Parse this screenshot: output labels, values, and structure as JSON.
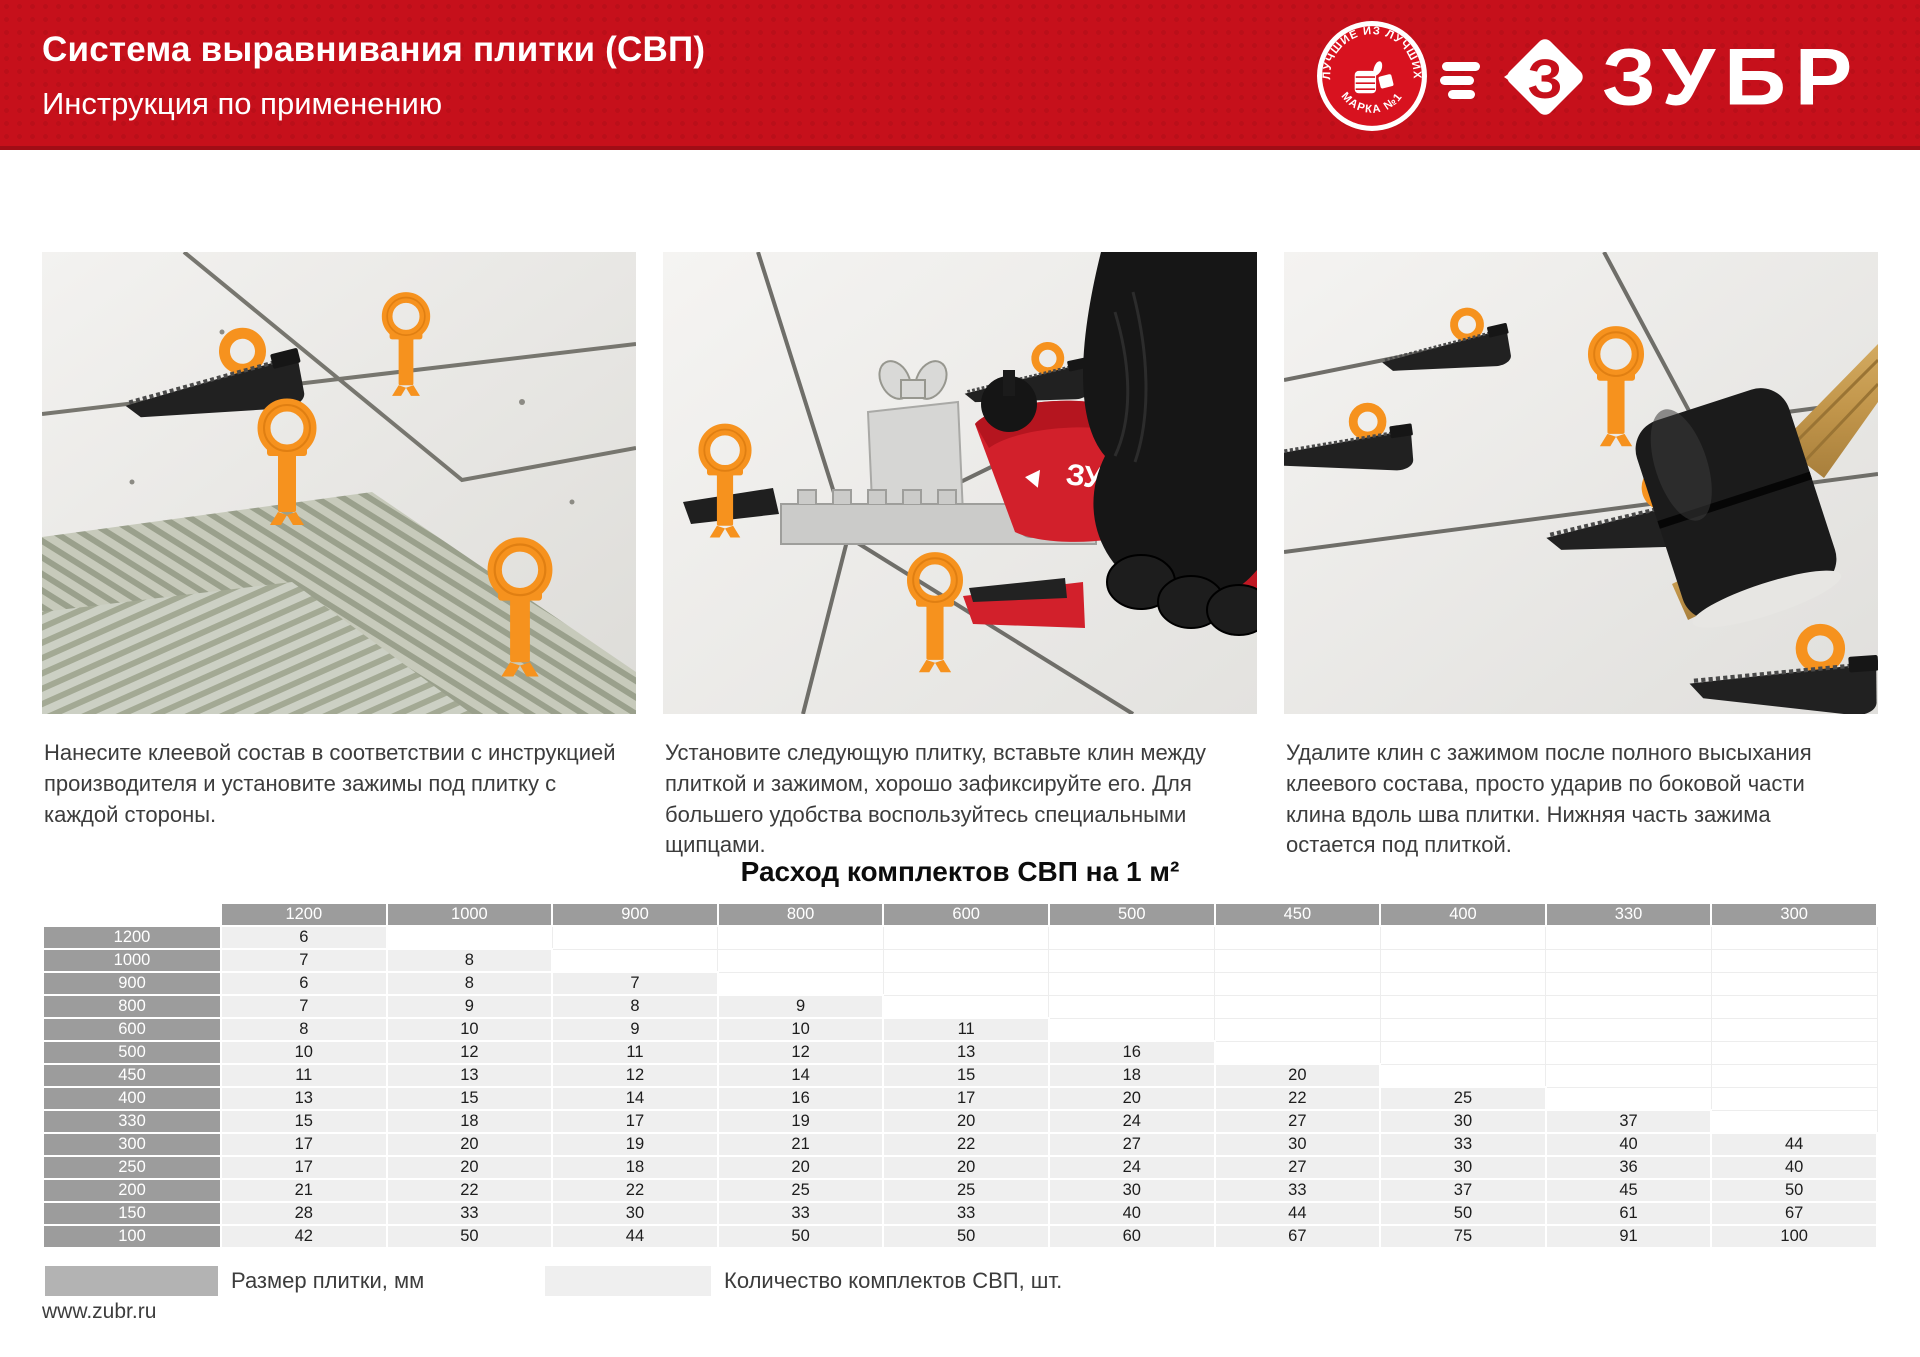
{
  "header": {
    "title": "Система выравнивания плитки (СВП)",
    "subtitle": "Инструкция по применению",
    "badge": {
      "top_text": "ЛУЧШИЕ ИЗ ЛУЧШИХ",
      "bottom_text": "МАРКА №1"
    },
    "brand": "ЗУБР",
    "colors": {
      "header_red": "#c6101b",
      "badge_red": "#d8121f",
      "clip_orange": "#f6921e"
    }
  },
  "steps": [
    {
      "caption": "Нанесите клеевой состав в соответствии с инструкцией производителя и установите зажимы под плитку с каждой стороны."
    },
    {
      "caption": "Установите следующую плитку, вставьте клин между плиткой и зажимом, хорошо зафиксируйте его. Для большего удобства воспользуйтесь специальными щипцами."
    },
    {
      "caption": "Удалите клин с зажимом после полного высыхания клеевого состава, просто ударив по боковой части клина вдоль шва плитки. Нижняя часть зажима остается под плиткой."
    }
  ],
  "table": {
    "title": "Расход комплектов СВП на 1 м²",
    "col_headers": [
      "1200",
      "1000",
      "900",
      "800",
      "600",
      "500",
      "450",
      "400",
      "330",
      "300"
    ],
    "rows": [
      {
        "label": "1200",
        "values": [
          "6",
          "",
          "",
          "",
          "",
          "",
          "",
          "",
          "",
          ""
        ]
      },
      {
        "label": "1000",
        "values": [
          "7",
          "8",
          "",
          "",
          "",
          "",
          "",
          "",
          "",
          ""
        ]
      },
      {
        "label": "900",
        "values": [
          "6",
          "8",
          "7",
          "",
          "",
          "",
          "",
          "",
          "",
          ""
        ]
      },
      {
        "label": "800",
        "values": [
          "7",
          "9",
          "8",
          "9",
          "",
          "",
          "",
          "",
          "",
          ""
        ]
      },
      {
        "label": "600",
        "values": [
          "8",
          "10",
          "9",
          "10",
          "11",
          "",
          "",
          "",
          "",
          ""
        ]
      },
      {
        "label": "500",
        "values": [
          "10",
          "12",
          "11",
          "12",
          "13",
          "16",
          "",
          "",
          "",
          ""
        ]
      },
      {
        "label": "450",
        "values": [
          "11",
          "13",
          "12",
          "14",
          "15",
          "18",
          "20",
          "",
          "",
          ""
        ]
      },
      {
        "label": "400",
        "values": [
          "13",
          "15",
          "14",
          "16",
          "17",
          "20",
          "22",
          "25",
          "",
          ""
        ]
      },
      {
        "label": "330",
        "values": [
          "15",
          "18",
          "17",
          "19",
          "20",
          "24",
          "27",
          "30",
          "37",
          ""
        ]
      },
      {
        "label": "300",
        "values": [
          "17",
          "20",
          "19",
          "21",
          "22",
          "27",
          "30",
          "33",
          "40",
          "44"
        ]
      },
      {
        "label": "250",
        "values": [
          "17",
          "20",
          "18",
          "20",
          "20",
          "24",
          "27",
          "30",
          "36",
          "40"
        ]
      },
      {
        "label": "200",
        "values": [
          "21",
          "22",
          "22",
          "25",
          "25",
          "30",
          "33",
          "37",
          "45",
          "50"
        ]
      },
      {
        "label": "150",
        "values": [
          "28",
          "33",
          "30",
          "33",
          "33",
          "40",
          "44",
          "50",
          "61",
          "67"
        ]
      },
      {
        "label": "100",
        "values": [
          "42",
          "50",
          "44",
          "50",
          "50",
          "60",
          "67",
          "75",
          "91",
          "100"
        ]
      }
    ]
  },
  "legend": {
    "size_label": "Размер плитки, мм",
    "qty_label": "Количество комплектов СВП, шт."
  },
  "footer": {
    "website": "www.zubr.ru"
  }
}
